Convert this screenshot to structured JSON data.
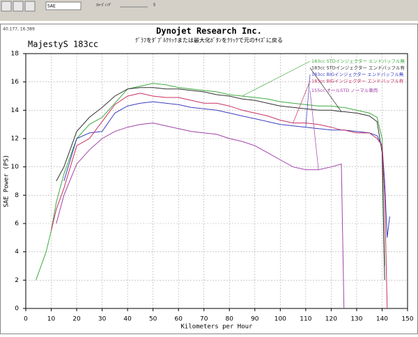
{
  "toolbar": {
    "correction": "SAE",
    "smoothing_label": "ｽﾑｰｽﾞｨﾝｸﾞ",
    "smoothing_value": "5"
  },
  "cursor_readout": "40.177, 16.389",
  "chart_data": {
    "type": "line",
    "title": "Dynojet  Research  Inc.",
    "subtitle": "ｸﾞﾗﾌをﾀﾞﾌﾞﾙｸﾘｯｸまたは最大化ﾎﾞﾀﾝをｸﾘｯｸで元のｻｲｽﾞに戻る",
    "annotation": "MajestyS 183cc",
    "x_label": "Kilometers per Hour",
    "y_label": "SAE Power (PS)",
    "x": [
      4,
      8,
      10,
      12,
      15,
      20,
      25,
      30,
      35,
      40,
      45,
      50,
      55,
      60,
      65,
      70,
      75,
      80,
      85,
      90,
      95,
      100,
      105,
      110,
      115,
      120,
      124,
      125,
      130,
      135,
      138,
      140,
      141,
      142,
      143
    ],
    "series": [
      {
        "name": "183cc STDインジェクター エンドバッフル無",
        "color": "#3daa3d",
        "values": [
          2.0,
          4.0,
          5.5,
          7.5,
          9.5,
          12.0,
          13.0,
          13.5,
          14.5,
          15.5,
          15.7,
          15.9,
          15.8,
          15.6,
          15.5,
          15.4,
          15.3,
          15.1,
          15.0,
          14.9,
          14.8,
          14.6,
          14.5,
          14.4,
          14.3,
          14.3,
          14.2,
          14.2,
          14.0,
          13.8,
          13.5,
          12.0,
          3.0,
          null,
          null
        ]
      },
      {
        "name": "183cc STDインジェクター エンドバッフル有",
        "color": "#303030",
        "values": [
          null,
          null,
          null,
          9.0,
          10.0,
          12.5,
          13.5,
          14.2,
          15.0,
          15.5,
          15.6,
          15.6,
          15.5,
          15.5,
          15.4,
          15.3,
          15.1,
          15.0,
          14.8,
          14.7,
          14.5,
          14.3,
          14.2,
          14.1,
          14.0,
          14.0,
          13.9,
          13.9,
          13.8,
          13.6,
          13.2,
          11.0,
          2.0,
          null,
          null
        ]
      },
      {
        "name": "183cc BIGインジェクター エンドバッフル無",
        "color": "#3a3ec0",
        "values": [
          null,
          null,
          null,
          null,
          9.0,
          12.0,
          12.4,
          12.5,
          13.8,
          14.3,
          14.5,
          14.6,
          14.5,
          14.4,
          14.2,
          14.1,
          14.0,
          13.8,
          13.6,
          13.4,
          13.2,
          13.0,
          12.9,
          12.8,
          12.7,
          12.6,
          12.6,
          12.6,
          12.5,
          12.4,
          12.2,
          11.5,
          9.0,
          5.0,
          6.5
        ]
      },
      {
        "name": "183cc BIGインジェクター エンドバッフル有",
        "color": "#c83060",
        "values": [
          null,
          null,
          5.5,
          7.0,
          8.5,
          11.5,
          12.0,
          13.2,
          14.4,
          15.0,
          15.2,
          15.0,
          14.9,
          14.9,
          14.7,
          14.5,
          14.5,
          14.3,
          14.0,
          13.8,
          13.6,
          13.3,
          13.1,
          13.1,
          13.0,
          12.8,
          12.6,
          12.6,
          12.4,
          12.4,
          12.0,
          11.5,
          8.0,
          0.0,
          null
        ]
      },
      {
        "name": "155cc オールSTD ノーマル車両",
        "color": "#a040a8",
        "values": [
          null,
          null,
          null,
          6.0,
          8.0,
          10.2,
          11.2,
          12.0,
          12.5,
          12.8,
          13.0,
          13.1,
          12.9,
          12.7,
          12.5,
          12.4,
          12.3,
          12.0,
          11.8,
          11.5,
          11.0,
          10.5,
          10.0,
          9.8,
          9.8,
          10.0,
          10.2,
          0.0,
          null,
          null,
          null,
          null,
          null,
          null,
          null
        ]
      }
    ],
    "xlim": [
      0,
      150
    ],
    "xticks": [
      0,
      10,
      20,
      30,
      40,
      50,
      60,
      70,
      80,
      90,
      100,
      110,
      120,
      130,
      140,
      150
    ],
    "ylim": [
      0,
      18
    ],
    "yticks": [
      0,
      2,
      4,
      6,
      8,
      10,
      12,
      14,
      16,
      18
    ],
    "grid": true
  }
}
